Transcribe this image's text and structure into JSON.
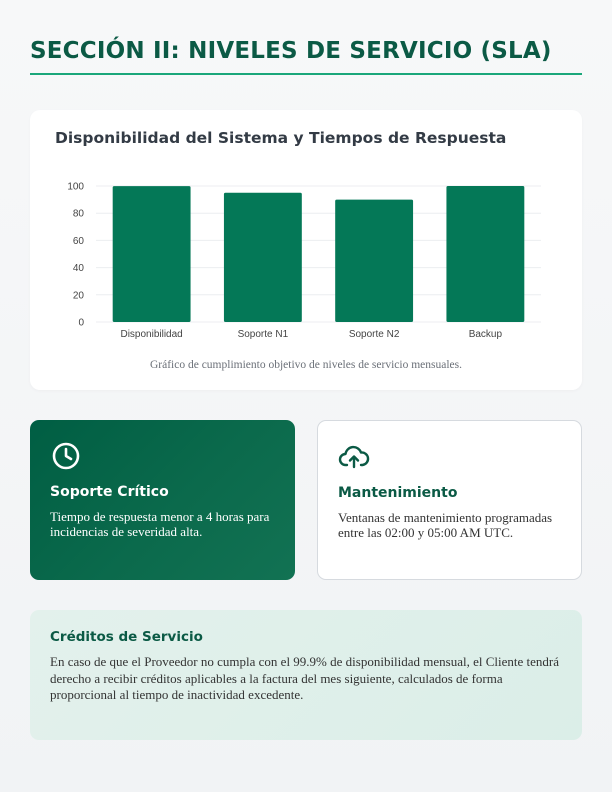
{
  "header": {
    "title": "SECCIÓN II: NIVELES DE SERVICIO (SLA)"
  },
  "chart_section": {
    "title": "Disponibilidad del Sistema y Tiempos de Respuesta",
    "caption": "Gráfico de cumplimiento objetivo de niveles de servicio mensuales."
  },
  "chart_data": {
    "type": "bar",
    "categories": [
      "Disponibilidad",
      "Soporte N1",
      "Soporte N2",
      "Backup"
    ],
    "values": [
      99.9,
      95,
      90,
      100
    ],
    "y_ticks": [
      "0",
      "20",
      "40",
      "60",
      "80",
      "100"
    ],
    "ylim": [
      0,
      100
    ],
    "grid": true,
    "bar_color": "#047857"
  },
  "cards": [
    {
      "icon": "clock-icon",
      "title": "Soporte Crítico",
      "text": "Tiempo de respuesta menor a 4 horas para incidencias de severidad alta."
    },
    {
      "icon": "cloud-upload-icon",
      "title": "Mantenimiento",
      "text": "Ventanas de mantenimiento programadas entre las 02:00 y 05:00 AM UTC."
    }
  ],
  "credits": {
    "title": "Créditos de Servicio",
    "text": "En caso de que el Proveedor no cumpla con el 99.9% de disponibilidad mensual, el Cliente tendrá derecho a recibir créditos aplicables a la factura del mes siguiente, calculados de forma proporcional al tiempo de inactividad excedente."
  },
  "colors": {
    "accent": "#0b5a45",
    "rule": "#1aa77a",
    "bar": "#047857"
  }
}
